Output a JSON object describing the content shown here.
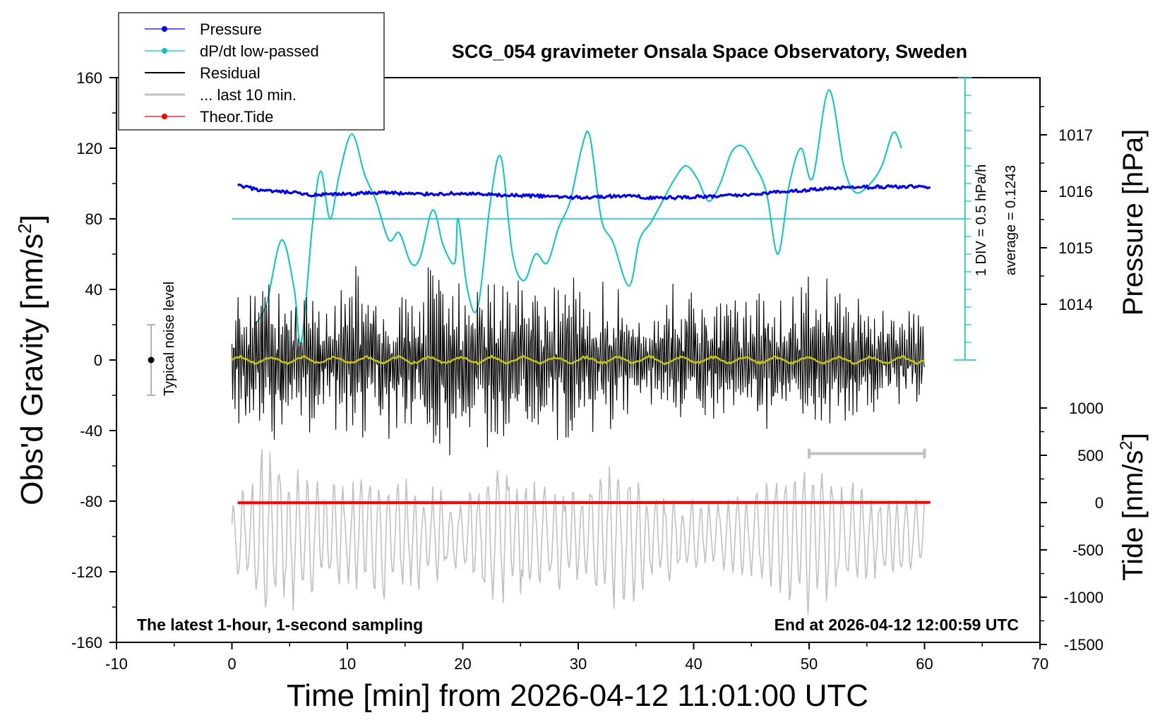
{
  "chart_data": {
    "type": "line",
    "title": "SCG_054 gravimeter Onsala Space Observatory, Sweden",
    "xlabel": "Time [min] from 2026-04-12 11:01:00 UTC",
    "ylabel_left_main": "Obs'd Gravity [nm/s",
    "ylabel_left_sup": "2",
    "ylabel_left_tail": "]",
    "ylabel_right_pressure": "Pressure [hPa]",
    "ylabel_right_tide_main": "Tide [nm/s",
    "ylabel_right_tide_sup": "2",
    "ylabel_right_tide_tail": "]",
    "xlim": [
      -10,
      70
    ],
    "ylim_left": [
      -160,
      160
    ],
    "ylim_pressure": [
      1013,
      1018
    ],
    "ylim_tide": [
      -1500,
      1000
    ],
    "x_ticks": [
      "-10",
      "0",
      "10",
      "20",
      "30",
      "40",
      "50",
      "60",
      "70"
    ],
    "y_ticks_left": [
      "160",
      "120",
      "80",
      "40",
      "0",
      "-40",
      "-80",
      "-120",
      "-160"
    ],
    "y_ticks_pressure": [
      "1017",
      "1016",
      "1015",
      "1014"
    ],
    "y_ticks_tide": [
      "1000",
      "500",
      "0",
      "-500",
      "-1000",
      "-1500"
    ],
    "legend": {
      "placement": "top-left",
      "entries": [
        {
          "label": "Pressure",
          "color": "#0000ff",
          "style": "line-dot"
        },
        {
          "label": "dP/dt low-passed",
          "color": "#00c8c8",
          "style": "line-dot"
        },
        {
          "label": "Residual",
          "color": "#000000",
          "style": "line"
        },
        {
          "label": "... last 10 min.",
          "color": "#c0c0c0",
          "style": "line"
        },
        {
          "label": "Theor.Tide",
          "color": "#ff0000",
          "style": "line-dot"
        }
      ]
    },
    "annotations": {
      "noise_label": "Typical noise level",
      "noise_center": 0,
      "noise_halfwidth": 20,
      "noise_x": -7,
      "div_label": "1 DIV = 0.5 hPa/h",
      "average_label": "average = 0.1243",
      "bottom_left": "The latest 1-hour, 1-second sampling",
      "bottom_right": "End at 2026-04-12 12:00:59 UTC",
      "last10_bar_x": [
        50,
        60
      ],
      "last10_bar_y": -53,
      "dpdt_baseline_y": 80
    },
    "series": {
      "pressure_hPa": {
        "x": [
          0.5,
          3,
          5,
          7,
          10,
          13,
          16,
          20,
          23,
          26,
          30,
          34,
          37,
          40,
          44,
          48,
          52,
          56,
          60.5
        ],
        "y": [
          1016.1,
          1016.0,
          1015.98,
          1015.93,
          1015.95,
          1015.98,
          1015.95,
          1015.96,
          1015.93,
          1015.92,
          1015.89,
          1015.92,
          1015.88,
          1015.9,
          1015.93,
          1016.0,
          1016.05,
          1016.08,
          1016.08
        ]
      },
      "dpdt_gravity_units": {
        "x": [
          2,
          3,
          4.3,
          5.4,
          6,
          7,
          7.7,
          8.5,
          9.3,
          10.4,
          11.5,
          12.5,
          13.6,
          14.5,
          15.5,
          16.3,
          17.4,
          18.3,
          19.3,
          19.6,
          20.4,
          21.3,
          22.4,
          23.3,
          24.3,
          25.3,
          26.3,
          27.3,
          28.3,
          29.3,
          30.3,
          31,
          32,
          33,
          34.4,
          35.3,
          36.3,
          37.3,
          38.3,
          39.3,
          40.3,
          41.3,
          42.3,
          43.3,
          44.3,
          45.3,
          46.3,
          47.3,
          48.3,
          49.3,
          50.3,
          51.7,
          53,
          54,
          55.3,
          56.3,
          57.3,
          58
        ],
        "y": [
          20,
          32,
          68,
          40,
          10,
          78,
          107,
          80,
          105,
          128,
          105,
          90,
          68,
          72,
          55,
          58,
          85,
          65,
          55,
          80,
          40,
          30,
          90,
          115,
          60,
          45,
          60,
          55,
          75,
          90,
          120,
          127,
          80,
          67,
          42,
          68,
          78,
          90,
          102,
          110,
          103,
          90,
          100,
          118,
          121,
          110,
          95,
          60,
          100,
          120,
          103,
          153,
          110,
          95,
          100,
          110,
          129,
          120
        ]
      },
      "residual": {
        "x_start": 0,
        "x_end": 60,
        "points": 900,
        "seed": 12345,
        "envelope_x": [
          0,
          2,
          4,
          6,
          8,
          10,
          12,
          14,
          16,
          18,
          20,
          22,
          24,
          26,
          28,
          30,
          32,
          34,
          36,
          38,
          40,
          42,
          44,
          46,
          48,
          50,
          52,
          54,
          56,
          58,
          60
        ],
        "envelope_y": [
          35,
          45,
          50,
          42,
          35,
          48,
          52,
          40,
          48,
          56,
          42,
          46,
          48,
          42,
          45,
          48,
          44,
          38,
          30,
          40,
          42,
          38,
          40,
          42,
          30,
          45,
          42,
          38,
          30,
          28,
          25
        ]
      },
      "residual_lowpass": {
        "color": "#c8c800",
        "x_start": 0,
        "x_end": 60,
        "amplitude": 2
      },
      "last_10_min": {
        "x_start": 0,
        "x_end": 60,
        "center_y": -100,
        "points": 600,
        "seed": 6789,
        "envelope_x": [
          0,
          3,
          5,
          8,
          10,
          13,
          16,
          20,
          23,
          26,
          30,
          33,
          36,
          40,
          45,
          48,
          51,
          55,
          60
        ],
        "envelope_y": [
          15,
          55,
          40,
          30,
          28,
          40,
          30,
          22,
          42,
          30,
          28,
          40,
          30,
          20,
          22,
          45,
          40,
          25,
          20
        ]
      },
      "theoretical_tide_nm_s2": {
        "x": [
          0.5,
          60.5
        ],
        "y": [
          -2,
          2
        ]
      }
    }
  }
}
